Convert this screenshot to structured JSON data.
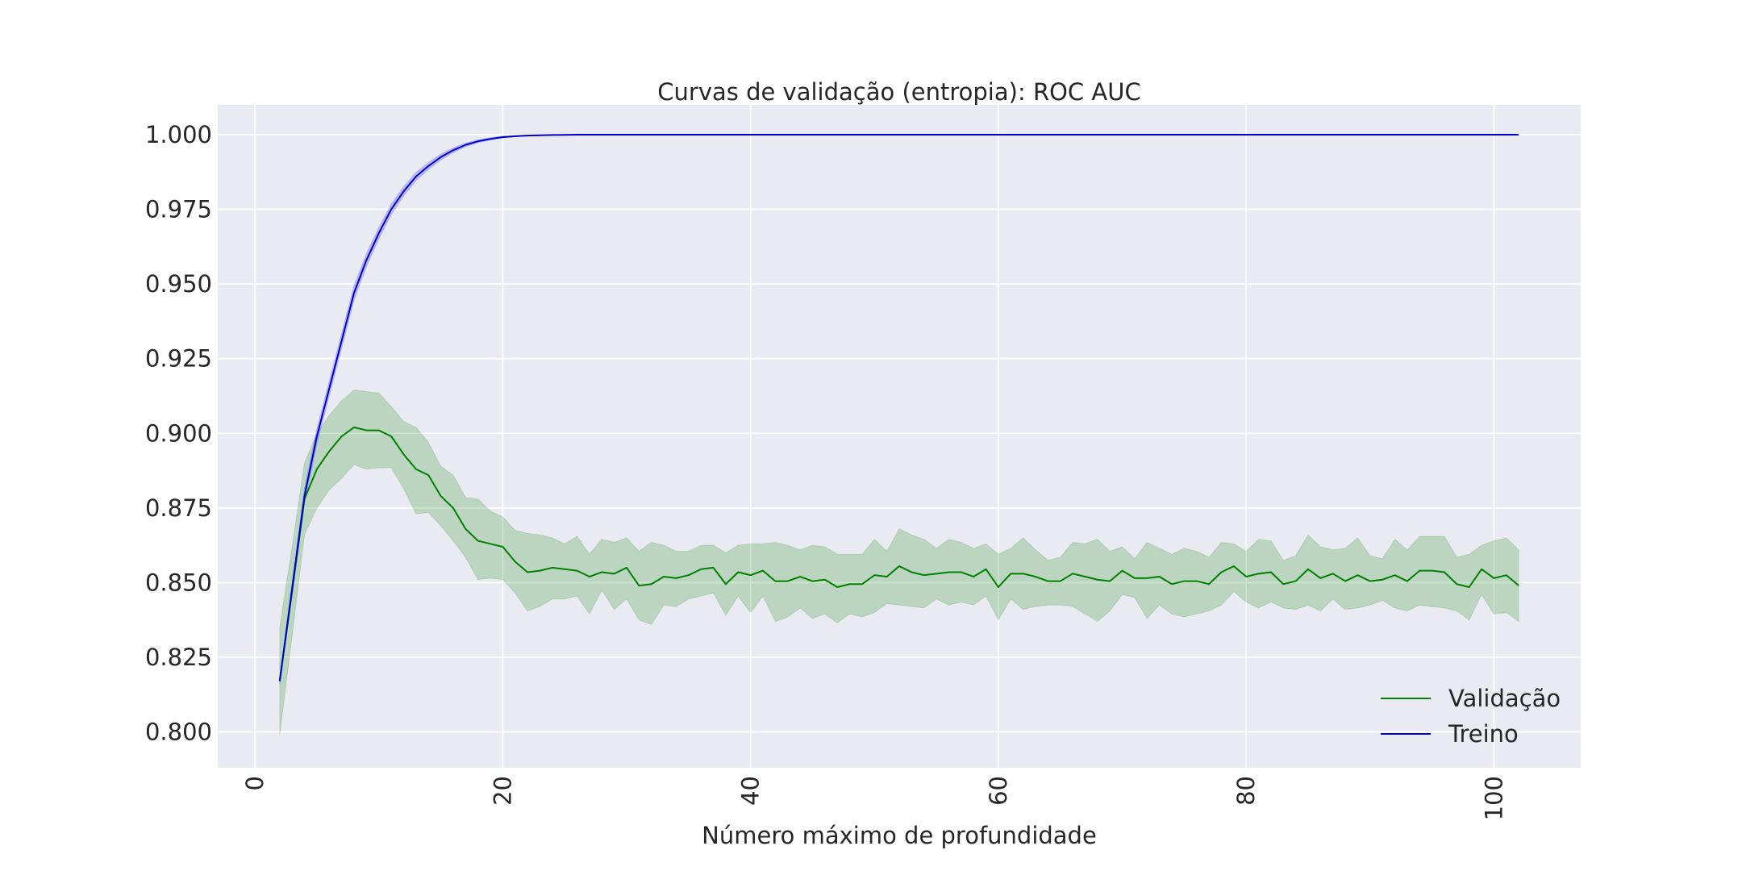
{
  "chart_data": {
    "type": "line",
    "title": "Curvas de validação (entropia): ROC AUC",
    "xlabel": "Número máximo de profundidade",
    "ylabel": "",
    "xlim": [
      -3,
      107
    ],
    "ylim": [
      0.788,
      1.01
    ],
    "x_ticks": [
      0,
      20,
      40,
      60,
      80,
      100
    ],
    "x_tick_labels": [
      "0",
      "20",
      "40",
      "60",
      "80",
      "100"
    ],
    "y_ticks": [
      0.8,
      0.825,
      0.85,
      0.875,
      0.9,
      0.925,
      0.95,
      0.975,
      1.0
    ],
    "y_tick_labels": [
      "0.800",
      "0.825",
      "0.850",
      "0.875",
      "0.900",
      "0.925",
      "0.950",
      "0.975",
      "1.000"
    ],
    "grid": true,
    "legend_position": "lower-right",
    "x": [
      2,
      3,
      4,
      5,
      6,
      7,
      8,
      9,
      10,
      11,
      12,
      13,
      14,
      15,
      16,
      17,
      18,
      19,
      20,
      21,
      22,
      23,
      24,
      25,
      26,
      27,
      28,
      29,
      30,
      31,
      32,
      33,
      34,
      35,
      36,
      37,
      38,
      39,
      40,
      41,
      42,
      43,
      44,
      45,
      46,
      47,
      48,
      49,
      50,
      51,
      52,
      53,
      54,
      55,
      56,
      57,
      58,
      59,
      60,
      61,
      62,
      63,
      64,
      65,
      66,
      67,
      68,
      69,
      70,
      71,
      72,
      73,
      74,
      75,
      76,
      77,
      78,
      79,
      80,
      81,
      82,
      83,
      84,
      85,
      86,
      87,
      88,
      89,
      90,
      91,
      92,
      93,
      94,
      95,
      96,
      97,
      98,
      99,
      100,
      101,
      102
    ],
    "series": [
      {
        "name": "Validação",
        "color": "#008000",
        "band_color": "#008000",
        "values": [
          0.817,
          0.847,
          0.878,
          0.888,
          0.894,
          0.899,
          0.902,
          0.901,
          0.901,
          0.899,
          0.893,
          0.888,
          0.886,
          0.879,
          0.875,
          0.868,
          0.864,
          0.863,
          0.862,
          0.857,
          0.8535,
          0.854,
          0.855,
          0.8545,
          0.854,
          0.852,
          0.8535,
          0.853,
          0.855,
          0.849,
          0.8495,
          0.852,
          0.8515,
          0.8525,
          0.8545,
          0.855,
          0.8495,
          0.8535,
          0.8525,
          0.854,
          0.8505,
          0.8505,
          0.852,
          0.8505,
          0.851,
          0.8485,
          0.8495,
          0.8495,
          0.8525,
          0.852,
          0.8555,
          0.8535,
          0.8525,
          0.853,
          0.8535,
          0.8535,
          0.852,
          0.8545,
          0.8485,
          0.853,
          0.853,
          0.852,
          0.8505,
          0.8505,
          0.853,
          0.852,
          0.851,
          0.8505,
          0.854,
          0.8515,
          0.8515,
          0.852,
          0.8495,
          0.8505,
          0.8505,
          0.8495,
          0.8535,
          0.8555,
          0.852,
          0.853,
          0.8535,
          0.8495,
          0.8505,
          0.8545,
          0.8515,
          0.853,
          0.8505,
          0.8525,
          0.8505,
          0.851,
          0.8525,
          0.8505,
          0.854,
          0.854,
          0.8535,
          0.8495,
          0.8485,
          0.8545,
          0.8515,
          0.8525,
          0.849
        ],
        "upper": [
          0.835,
          0.862,
          0.89,
          0.9,
          0.906,
          0.911,
          0.9145,
          0.914,
          0.9135,
          0.909,
          0.904,
          0.902,
          0.897,
          0.889,
          0.886,
          0.8785,
          0.878,
          0.874,
          0.872,
          0.8675,
          0.8665,
          0.866,
          0.865,
          0.863,
          0.8655,
          0.8595,
          0.8645,
          0.8635,
          0.865,
          0.8605,
          0.8635,
          0.8625,
          0.8605,
          0.8605,
          0.8625,
          0.8625,
          0.86,
          0.8625,
          0.863,
          0.863,
          0.8635,
          0.8625,
          0.861,
          0.8625,
          0.862,
          0.8595,
          0.8595,
          0.8595,
          0.8645,
          0.8605,
          0.868,
          0.866,
          0.8645,
          0.8615,
          0.8645,
          0.8635,
          0.8615,
          0.863,
          0.8595,
          0.8615,
          0.865,
          0.861,
          0.8575,
          0.8585,
          0.8635,
          0.863,
          0.8645,
          0.8605,
          0.862,
          0.858,
          0.8635,
          0.8615,
          0.8595,
          0.8615,
          0.8605,
          0.8585,
          0.8635,
          0.863,
          0.8605,
          0.8645,
          0.864,
          0.8575,
          0.859,
          0.866,
          0.862,
          0.861,
          0.8615,
          0.865,
          0.859,
          0.858,
          0.8645,
          0.861,
          0.8655,
          0.8655,
          0.8655,
          0.8585,
          0.8595,
          0.8625,
          0.864,
          0.865,
          0.861
        ],
        "lower": [
          0.799,
          0.832,
          0.866,
          0.875,
          0.881,
          0.885,
          0.8895,
          0.888,
          0.8885,
          0.8885,
          0.8815,
          0.873,
          0.8735,
          0.869,
          0.864,
          0.8585,
          0.851,
          0.8515,
          0.851,
          0.8465,
          0.8405,
          0.842,
          0.8445,
          0.8445,
          0.8455,
          0.8395,
          0.8475,
          0.841,
          0.8445,
          0.8375,
          0.836,
          0.8425,
          0.842,
          0.8445,
          0.8455,
          0.8465,
          0.839,
          0.8455,
          0.84,
          0.8455,
          0.837,
          0.8385,
          0.8415,
          0.838,
          0.8395,
          0.8365,
          0.8395,
          0.8385,
          0.84,
          0.843,
          0.8425,
          0.842,
          0.8415,
          0.8445,
          0.8425,
          0.8435,
          0.8425,
          0.8455,
          0.8375,
          0.8445,
          0.841,
          0.842,
          0.8425,
          0.8425,
          0.842,
          0.8395,
          0.837,
          0.8405,
          0.846,
          0.845,
          0.838,
          0.8425,
          0.8395,
          0.8385,
          0.8395,
          0.8405,
          0.8425,
          0.847,
          0.8435,
          0.8415,
          0.8435,
          0.8415,
          0.841,
          0.8425,
          0.8405,
          0.8445,
          0.841,
          0.8415,
          0.8425,
          0.844,
          0.8415,
          0.8405,
          0.8425,
          0.842,
          0.8415,
          0.8405,
          0.8375,
          0.846,
          0.8395,
          0.84,
          0.837
        ]
      },
      {
        "name": "Treino",
        "color": "#0000cc",
        "band_color": "#0000ff",
        "values": [
          0.817,
          0.848,
          0.879,
          0.899,
          0.915,
          0.931,
          0.947,
          0.958,
          0.967,
          0.975,
          0.981,
          0.986,
          0.9895,
          0.9925,
          0.9948,
          0.9966,
          0.9978,
          0.9986,
          0.9992,
          0.9995,
          0.9997,
          0.9998,
          0.9999,
          0.99995,
          1.0,
          1.0,
          1.0,
          1.0,
          1.0,
          1.0,
          1.0,
          1.0,
          1.0,
          1.0,
          1.0,
          1.0,
          1.0,
          1.0,
          1.0,
          1.0,
          1.0,
          1.0,
          1.0,
          1.0,
          1.0,
          1.0,
          1.0,
          1.0,
          1.0,
          1.0,
          1.0,
          1.0,
          1.0,
          1.0,
          1.0,
          1.0,
          1.0,
          1.0,
          1.0,
          1.0,
          1.0,
          1.0,
          1.0,
          1.0,
          1.0,
          1.0,
          1.0,
          1.0,
          1.0,
          1.0,
          1.0,
          1.0,
          1.0,
          1.0,
          1.0,
          1.0,
          1.0,
          1.0,
          1.0,
          1.0,
          1.0,
          1.0,
          1.0,
          1.0,
          1.0,
          1.0,
          1.0,
          1.0,
          1.0,
          1.0,
          1.0,
          1.0,
          1.0,
          1.0,
          1.0,
          1.0,
          1.0,
          1.0,
          1.0,
          1.0,
          1.0
        ],
        "band": [
          0.001,
          0.002,
          0.0025,
          0.0025,
          0.0025,
          0.0025,
          0.0025,
          0.0022,
          0.002,
          0.0018,
          0.0016,
          0.0014,
          0.0012,
          0.001,
          0.0008,
          0.0006,
          0.0005,
          0.0004,
          0.0003,
          0.0002,
          0.0001,
          0,
          0,
          0,
          0,
          0,
          0,
          0,
          0,
          0,
          0,
          0,
          0,
          0,
          0,
          0,
          0,
          0,
          0,
          0,
          0,
          0,
          0,
          0,
          0,
          0,
          0,
          0,
          0,
          0,
          0,
          0,
          0,
          0,
          0,
          0,
          0,
          0,
          0,
          0,
          0,
          0,
          0,
          0,
          0,
          0,
          0,
          0,
          0,
          0,
          0,
          0,
          0,
          0,
          0,
          0,
          0,
          0,
          0,
          0,
          0,
          0,
          0,
          0,
          0,
          0,
          0,
          0,
          0,
          0,
          0,
          0,
          0,
          0,
          0,
          0,
          0,
          0,
          0,
          0,
          0
        ]
      }
    ]
  }
}
